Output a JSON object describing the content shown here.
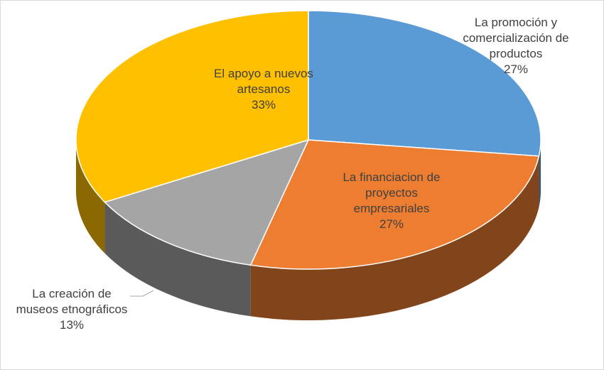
{
  "chart_data": {
    "type": "pie3d",
    "categories": [
      "La promoción y comercialización de productos",
      "La financiacion de proyectos empresariales",
      "La creación de museos etnográficos",
      "El apoyo a nuevos artesanos"
    ],
    "values": [
      27,
      27,
      13,
      33
    ],
    "value_labels": [
      "27%",
      "27%",
      "13%",
      "33%"
    ],
    "colors": [
      "#5b9bd5",
      "#ed7d31",
      "#a5a5a5",
      "#ffc000"
    ]
  }
}
